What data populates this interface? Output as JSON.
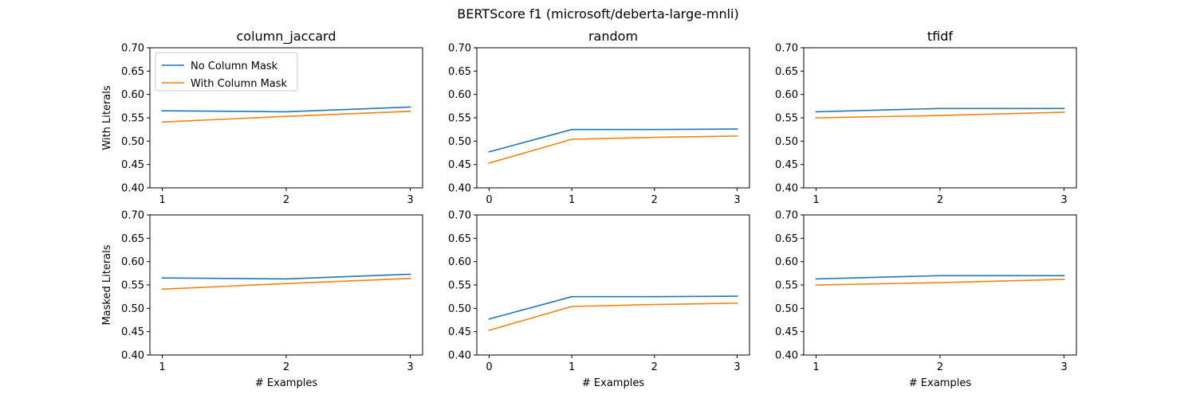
{
  "figure": {
    "suptitle": "BERTScore f1 (microsoft/deberta-large-mnli)"
  },
  "colors": {
    "series_0": "#1f77b4",
    "series_1": "#ff7f0e"
  },
  "chart_data": [
    {
      "type": "line",
      "title": "column_jaccard",
      "ylabel": "With Literals",
      "xlabel": "",
      "x": [
        1,
        2,
        3
      ],
      "xticks": [
        "1",
        "2",
        "3"
      ],
      "ylim": [
        0.4,
        0.7
      ],
      "yticks": [
        "0.40",
        "0.45",
        "0.50",
        "0.55",
        "0.60",
        "0.65",
        "0.70"
      ],
      "grid": false,
      "legend": "upper-left",
      "series": [
        {
          "name": "No Column Mask",
          "values": [
            0.565,
            0.563,
            0.573
          ]
        },
        {
          "name": "With Column Mask",
          "values": [
            0.541,
            0.553,
            0.564
          ]
        }
      ]
    },
    {
      "type": "line",
      "title": "random",
      "ylabel": "",
      "xlabel": "",
      "x": [
        0,
        1,
        2,
        3
      ],
      "xticks": [
        "0",
        "1",
        "2",
        "3"
      ],
      "ylim": [
        0.4,
        0.7
      ],
      "yticks": [
        "0.40",
        "0.45",
        "0.50",
        "0.55",
        "0.60",
        "0.65",
        "0.70"
      ],
      "grid": false,
      "series": [
        {
          "values": [
            0.477,
            0.525,
            0.525,
            0.526
          ]
        },
        {
          "values": [
            0.453,
            0.504,
            0.508,
            0.511
          ]
        }
      ]
    },
    {
      "type": "line",
      "title": "tfidf",
      "ylabel": "",
      "xlabel": "",
      "x": [
        1,
        2,
        3
      ],
      "xticks": [
        "1",
        "2",
        "3"
      ],
      "ylim": [
        0.4,
        0.7
      ],
      "yticks": [
        "0.40",
        "0.45",
        "0.50",
        "0.55",
        "0.60",
        "0.65",
        "0.70"
      ],
      "grid": false,
      "series": [
        {
          "values": [
            0.563,
            0.57,
            0.57
          ]
        },
        {
          "values": [
            0.55,
            0.555,
            0.562
          ]
        }
      ]
    },
    {
      "type": "line",
      "title": "",
      "ylabel": "Masked Literals",
      "xlabel": "# Examples",
      "x": [
        1,
        2,
        3
      ],
      "xticks": [
        "1",
        "2",
        "3"
      ],
      "ylim": [
        0.4,
        0.7
      ],
      "yticks": [
        "0.40",
        "0.45",
        "0.50",
        "0.55",
        "0.60",
        "0.65",
        "0.70"
      ],
      "grid": false,
      "series": [
        {
          "values": [
            0.565,
            0.563,
            0.573
          ]
        },
        {
          "values": [
            0.541,
            0.553,
            0.564
          ]
        }
      ]
    },
    {
      "type": "line",
      "title": "",
      "ylabel": "",
      "xlabel": "# Examples",
      "x": [
        0,
        1,
        2,
        3
      ],
      "xticks": [
        "0",
        "1",
        "2",
        "3"
      ],
      "ylim": [
        0.4,
        0.7
      ],
      "yticks": [
        "0.40",
        "0.45",
        "0.50",
        "0.55",
        "0.60",
        "0.65",
        "0.70"
      ],
      "grid": false,
      "series": [
        {
          "values": [
            0.477,
            0.525,
            0.525,
            0.526
          ]
        },
        {
          "values": [
            0.453,
            0.504,
            0.508,
            0.511
          ]
        }
      ]
    },
    {
      "type": "line",
      "title": "",
      "ylabel": "",
      "xlabel": "# Examples",
      "x": [
        1,
        2,
        3
      ],
      "xticks": [
        "1",
        "2",
        "3"
      ],
      "ylim": [
        0.4,
        0.7
      ],
      "yticks": [
        "0.40",
        "0.45",
        "0.50",
        "0.55",
        "0.60",
        "0.65",
        "0.70"
      ],
      "grid": false,
      "series": [
        {
          "values": [
            0.563,
            0.57,
            0.57
          ]
        },
        {
          "values": [
            0.55,
            0.555,
            0.562
          ]
        }
      ]
    }
  ]
}
